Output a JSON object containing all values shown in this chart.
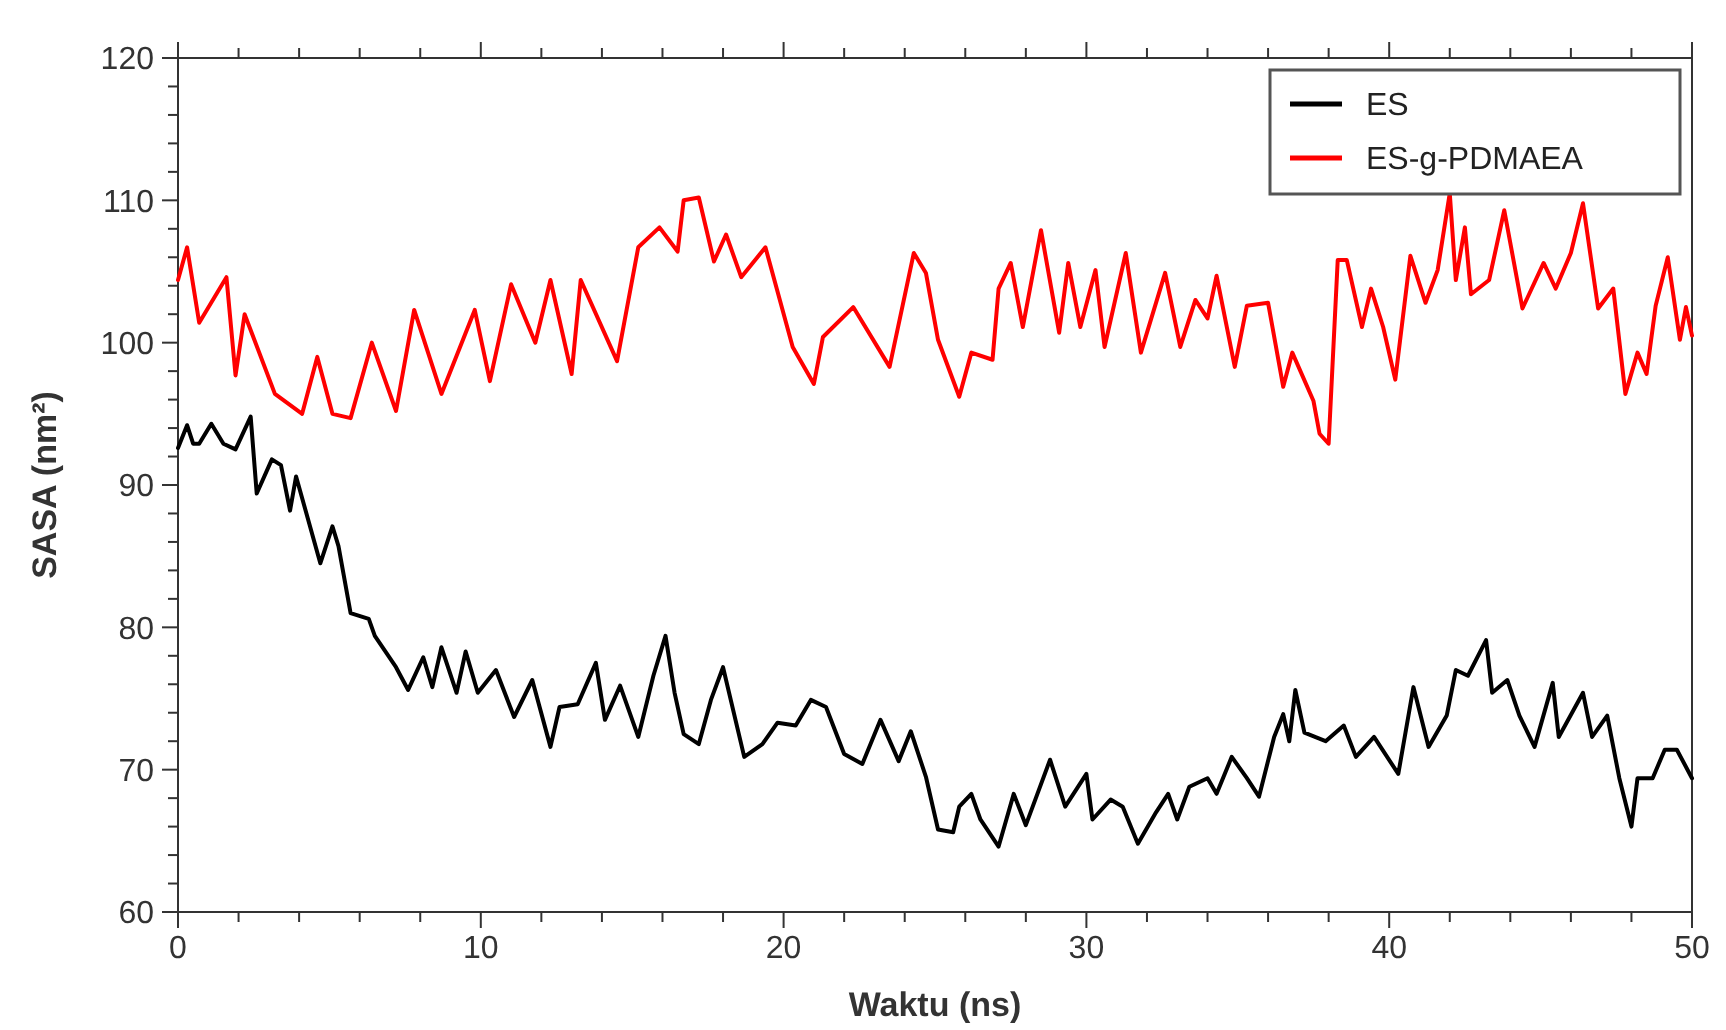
{
  "chart_data": {
    "type": "line",
    "xlabel": "Waktu (ns)",
    "ylabel": "SASA (nm²)",
    "xlim": [
      0,
      50
    ],
    "ylim": [
      60,
      120
    ],
    "xticks": [
      0,
      {
        "value": 2,
        "label": null
      },
      {
        "value": 4,
        "label": null
      },
      {
        "value": 6,
        "label": null
      },
      {
        "value": 8,
        "label": null
      },
      10,
      {
        "value": 12,
        "label": null
      },
      {
        "value": 14,
        "label": null
      },
      {
        "value": 16,
        "label": null
      },
      {
        "value": 18,
        "label": null
      },
      20,
      {
        "value": 22,
        "label": null
      },
      {
        "value": 24,
        "label": null
      },
      {
        "value": 26,
        "label": null
      },
      {
        "value": 28,
        "label": null
      },
      30,
      {
        "value": 32,
        "label": null
      },
      {
        "value": 34,
        "label": null
      },
      {
        "value": 36,
        "label": null
      },
      {
        "value": 38,
        "label": null
      },
      40,
      {
        "value": 42,
        "label": null
      },
      {
        "value": 44,
        "label": null
      },
      {
        "value": 46,
        "label": null
      },
      {
        "value": 48,
        "label": null
      },
      50
    ],
    "yticks": [
      60,
      {
        "value": 62,
        "label": null
      },
      {
        "value": 64,
        "label": null
      },
      {
        "value": 66,
        "label": null
      },
      {
        "value": 68,
        "label": null
      },
      70,
      {
        "value": 72,
        "label": null
      },
      {
        "value": 74,
        "label": null
      },
      {
        "value": 76,
        "label": null
      },
      {
        "value": 78,
        "label": null
      },
      80,
      {
        "value": 82,
        "label": null
      },
      {
        "value": 84,
        "label": null
      },
      {
        "value": 86,
        "label": null
      },
      {
        "value": 88,
        "label": null
      },
      90,
      {
        "value": 92,
        "label": null
      },
      {
        "value": 94,
        "label": null
      },
      {
        "value": 96,
        "label": null
      },
      {
        "value": 98,
        "label": null
      },
      100,
      {
        "value": 102,
        "label": null
      },
      {
        "value": 104,
        "label": null
      },
      {
        "value": 106,
        "label": null
      },
      {
        "value": 108,
        "label": null
      },
      110,
      {
        "value": 112,
        "label": null
      },
      {
        "value": 114,
        "label": null
      },
      {
        "value": 116,
        "label": null
      },
      {
        "value": 118,
        "label": null
      },
      120
    ],
    "grid": false,
    "legend": "top right",
    "marker": "none",
    "line_style": "solid",
    "series": [
      {
        "name": "ES",
        "color": "#000000",
        "x": [
          0,
          0.3,
          0.5,
          0.7,
          1.1,
          1.5,
          1.9,
          2.4,
          2.6,
          3.1,
          3.4,
          3.7,
          3.9,
          4.7,
          5.1,
          5.3,
          5.7,
          6.3,
          6.5,
          7.2,
          7.6,
          8.1,
          8.4,
          8.7,
          9.2,
          9.5,
          9.9,
          10.5,
          11.1,
          11.7,
          12.3,
          12.6,
          13.2,
          13.8,
          14.1,
          14.6,
          15.2,
          15.7,
          16.1,
          16.4,
          16.7,
          17.2,
          17.6,
          18,
          18.7,
          19.3,
          19.8,
          20.4,
          20.9,
          21.4,
          22,
          22.6,
          23.2,
          23.8,
          24.2,
          24.7,
          25.1,
          25.6,
          25.8,
          26.2,
          26.5,
          27.1,
          27.6,
          28,
          28.8,
          29.3,
          30,
          30.2,
          30.8,
          31.2,
          31.7,
          32.3,
          32.7,
          33,
          33.4,
          34,
          34.3,
          34.8,
          35.3,
          35.7,
          36.2,
          36.5,
          36.7,
          36.9,
          37.2,
          37.9,
          38.5,
          38.9,
          39.5,
          40.3,
          40.8,
          41.3,
          41.9,
          42.2,
          42.6,
          43.2,
          43.4,
          43.9,
          44.3,
          44.8,
          45.4,
          45.6,
          46.4,
          46.7,
          47.2,
          47.6,
          48,
          48.2,
          48.7,
          49.1,
          49.5,
          50
        ],
        "values": [
          92.6,
          94.2,
          92.9,
          92.9,
          94.3,
          92.9,
          92.5,
          94.8,
          89.4,
          91.8,
          91.4,
          88.2,
          90.6,
          84.5,
          87.1,
          85.7,
          81,
          80.6,
          79.4,
          77.2,
          75.6,
          77.9,
          75.8,
          78.6,
          75.4,
          78.3,
          75.4,
          77,
          73.7,
          76.3,
          71.6,
          74.4,
          74.6,
          77.5,
          73.5,
          75.9,
          72.3,
          76.6,
          79.4,
          75.4,
          72.5,
          71.8,
          74.9,
          77.2,
          70.9,
          71.8,
          73.3,
          73.1,
          74.9,
          74.4,
          71.1,
          70.4,
          73.5,
          70.6,
          72.7,
          69.5,
          65.8,
          65.6,
          67.4,
          68.3,
          66.5,
          64.6,
          68.3,
          66.1,
          70.7,
          67.4,
          69.7,
          66.5,
          67.9,
          67.4,
          64.8,
          67,
          68.3,
          66.5,
          68.8,
          69.4,
          68.3,
          70.9,
          69.4,
          68.1,
          72.3,
          73.9,
          72,
          75.6,
          72.6,
          72,
          73.1,
          70.9,
          72.3,
          69.7,
          75.8,
          71.6,
          73.8,
          77,
          76.6,
          79.1,
          75.4,
          76.3,
          73.8,
          71.6,
          76.1,
          72.3,
          75.4,
          72.3,
          73.8,
          69.4,
          66,
          69.4,
          69.4,
          71.4,
          71.4,
          69.4
        ]
      },
      {
        "name": "ES-g-PDMAEA",
        "color": "#ff0000",
        "x": [
          0,
          0.3,
          0.7,
          1.6,
          1.9,
          2.2,
          3.2,
          4.1,
          4.6,
          5.1,
          5.7,
          6.4,
          7.2,
          7.8,
          8.7,
          9.8,
          10.3,
          11,
          11.8,
          12.3,
          13,
          13.3,
          14.5,
          15.2,
          15.9,
          16.5,
          16.7,
          17.2,
          17.7,
          18.1,
          18.6,
          19.4,
          20.3,
          21,
          21.3,
          22.3,
          23.5,
          24.3,
          24.7,
          25.1,
          25.8,
          26.2,
          26.9,
          27.1,
          27.5,
          27.9,
          28.5,
          29.1,
          29.4,
          29.8,
          30.3,
          30.6,
          31.3,
          31.8,
          32.6,
          33.1,
          33.6,
          34,
          34.3,
          34.9,
          35.3,
          36,
          36.5,
          36.8,
          37.5,
          37.7,
          38,
          38.3,
          38.6,
          39.1,
          39.4,
          39.8,
          40.2,
          40.7,
          41.2,
          41.6,
          42,
          42.2,
          42.5,
          42.7,
          43.3,
          43.8,
          44.4,
          45.1,
          45.5,
          46,
          46.4,
          46.9,
          47.4,
          47.8,
          48.2,
          48.5,
          48.8,
          49.2,
          49.6,
          49.8,
          50
        ],
        "values": [
          104.4,
          106.7,
          101.4,
          104.6,
          97.7,
          102,
          96.4,
          95,
          99,
          95,
          94.7,
          100,
          95.2,
          102.3,
          96.4,
          102.3,
          97.3,
          104.1,
          100,
          104.4,
          97.8,
          104.4,
          98.7,
          106.7,
          108.1,
          106.4,
          110,
          110.2,
          105.7,
          107.6,
          104.6,
          106.7,
          99.7,
          97.1,
          100.4,
          102.5,
          98.3,
          106.3,
          104.9,
          100.2,
          96.2,
          99.3,
          98.8,
          103.8,
          105.6,
          101.1,
          107.9,
          100.7,
          105.6,
          101.1,
          105.1,
          99.7,
          106.3,
          99.3,
          104.9,
          99.7,
          103,
          101.7,
          104.7,
          98.3,
          102.6,
          102.8,
          96.9,
          99.3,
          95.9,
          93.6,
          92.9,
          105.8,
          105.8,
          101.1,
          103.8,
          101.1,
          97.4,
          106.1,
          102.8,
          105.1,
          110.5,
          104.4,
          108.1,
          103.4,
          104.4,
          109.3,
          102.4,
          105.6,
          103.8,
          106.3,
          109.8,
          102.4,
          103.8,
          96.4,
          99.3,
          97.8,
          102.6,
          106,
          100.2,
          102.5,
          100.5
        ]
      }
    ]
  }
}
